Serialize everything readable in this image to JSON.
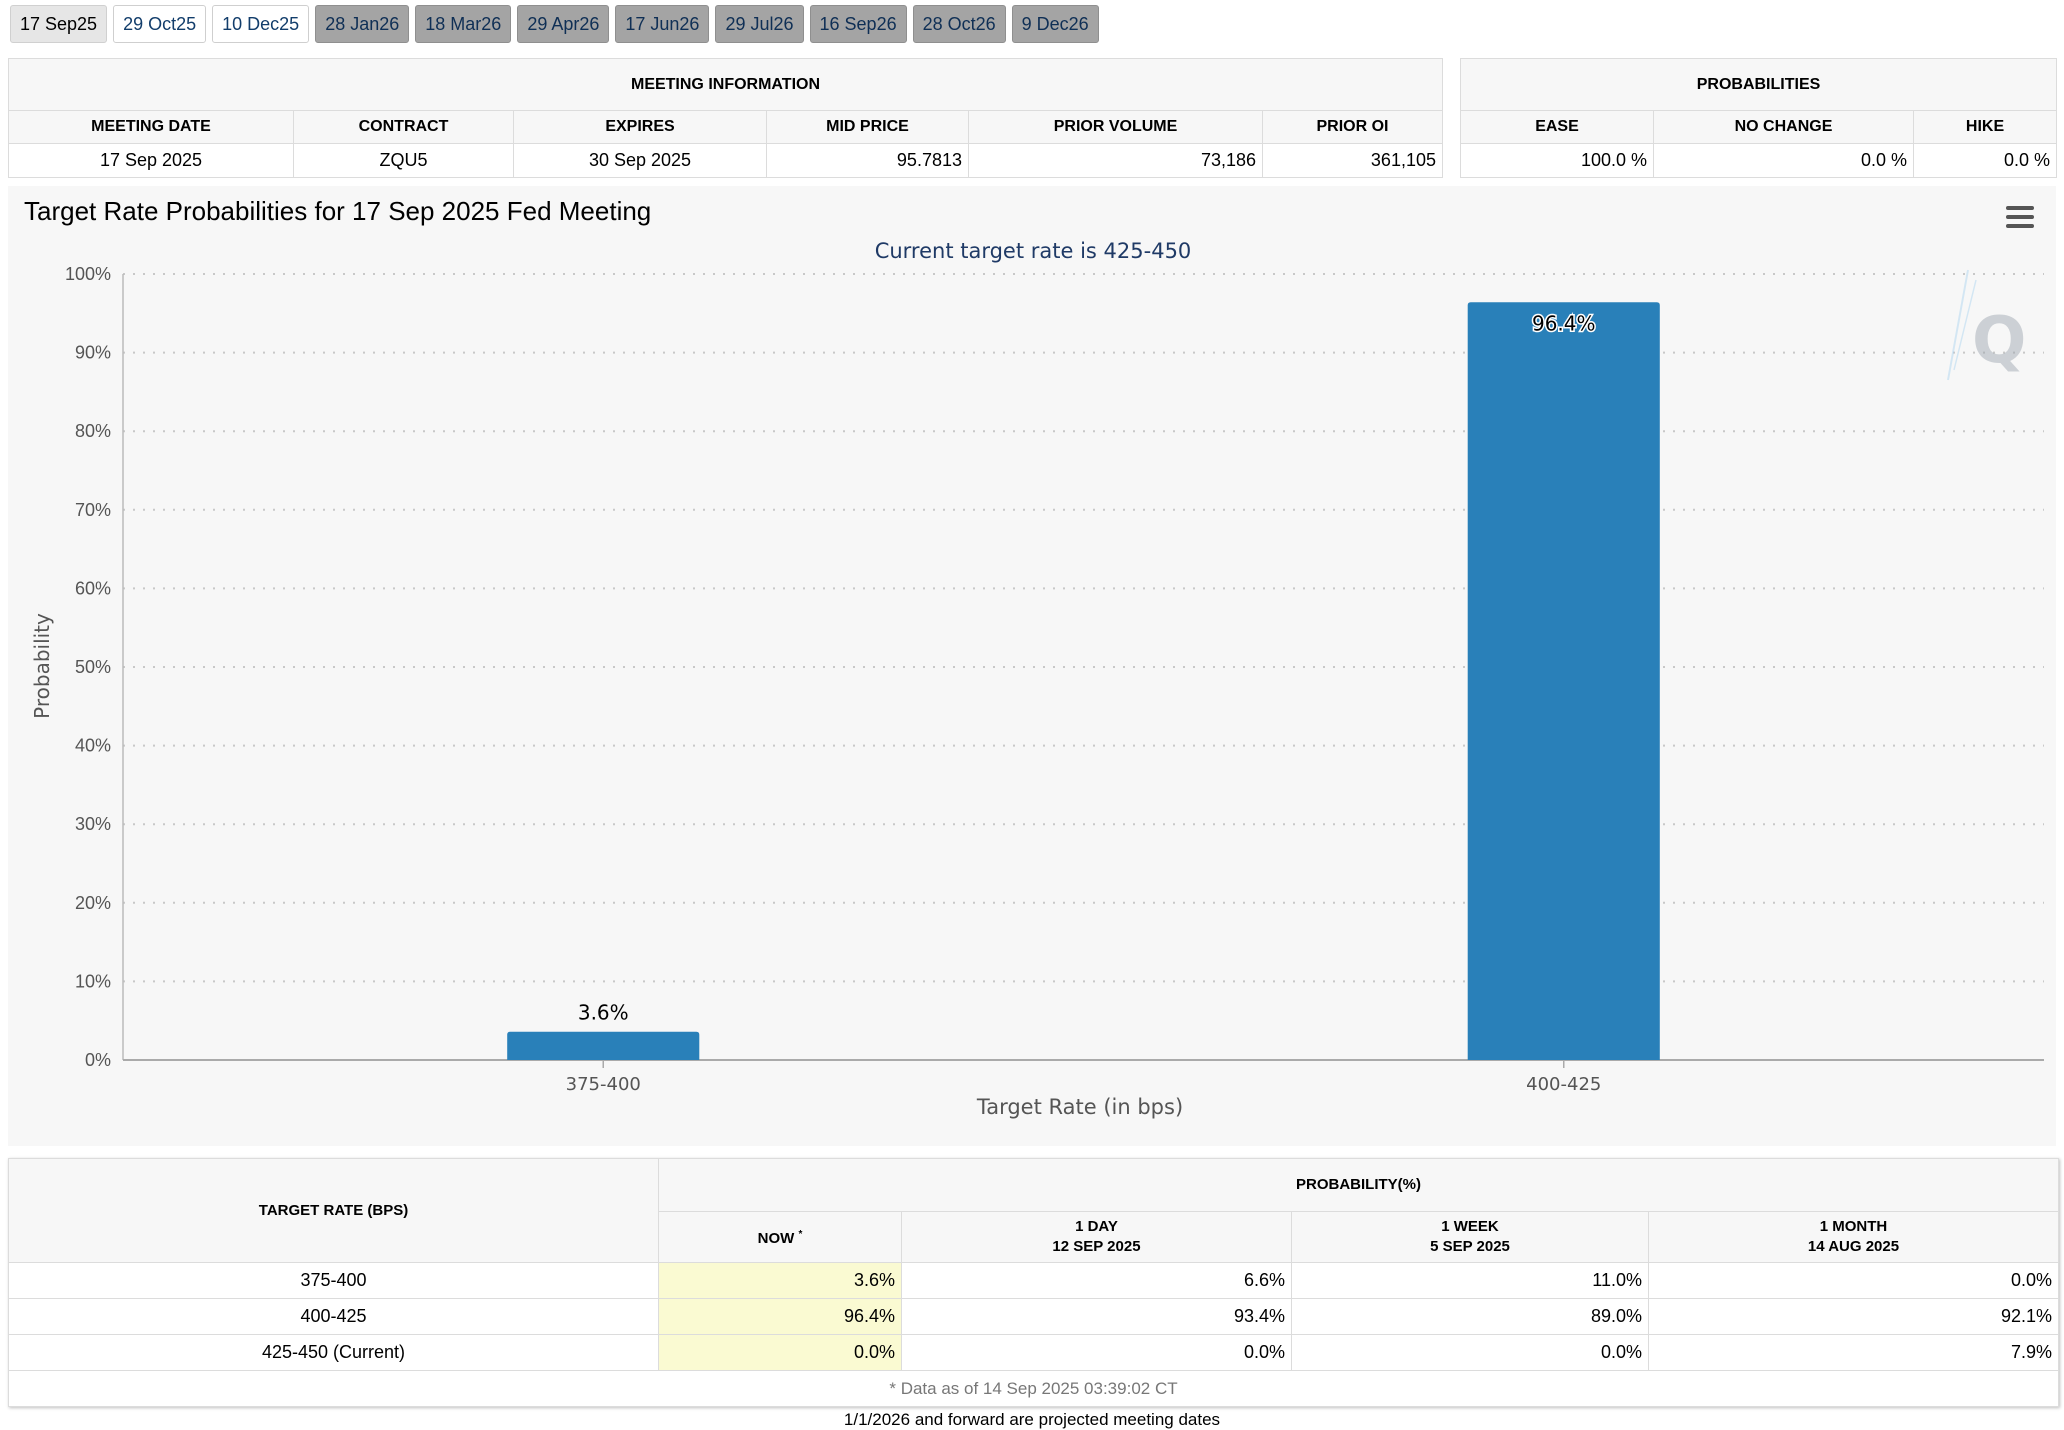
{
  "tabs": [
    {
      "label": "17 Sep25",
      "state": "active"
    },
    {
      "label": "29 Oct25",
      "state": "normal"
    },
    {
      "label": "10 Dec25",
      "state": "normal"
    },
    {
      "label": "28 Jan26",
      "state": "projected"
    },
    {
      "label": "18 Mar26",
      "state": "projected"
    },
    {
      "label": "29 Apr26",
      "state": "projected"
    },
    {
      "label": "17 Jun26",
      "state": "projected"
    },
    {
      "label": "29 Jul26",
      "state": "projected"
    },
    {
      "label": "16 Sep26",
      "state": "projected"
    },
    {
      "label": "28 Oct26",
      "state": "projected"
    },
    {
      "label": "9 Dec26",
      "state": "projected"
    }
  ],
  "meeting_info": {
    "title": "MEETING INFORMATION",
    "headers": [
      "MEETING DATE",
      "CONTRACT",
      "EXPIRES",
      "MID PRICE",
      "PRIOR VOLUME",
      "PRIOR OI"
    ],
    "row": [
      "17 Sep 2025",
      "ZQU5",
      "30 Sep 2025",
      "95.7813",
      "73,186",
      "361,105"
    ]
  },
  "probabilities": {
    "title": "PROBABILITIES",
    "headers": [
      "EASE",
      "NO CHANGE",
      "HIKE"
    ],
    "row": [
      "100.0 %",
      "0.0 %",
      "0.0 %"
    ]
  },
  "chart": {
    "menu_icon": "hamburger-menu-icon",
    "watermark_icon": "quikstrike-q-logo"
  },
  "chart_data": {
    "type": "bar",
    "title": "Target Rate Probabilities for 17 Sep 2025 Fed Meeting",
    "subtitle": "Current target rate is 425-450",
    "xlabel": "Target Rate (in bps)",
    "ylabel": "Probability",
    "categories": [
      "375-400",
      "400-425"
    ],
    "values": [
      3.6,
      96.4
    ],
    "data_labels": [
      "3.6%",
      "96.4%"
    ],
    "ylim": [
      0,
      100
    ],
    "yticks": [
      "0%",
      "10%",
      "20%",
      "30%",
      "40%",
      "50%",
      "60%",
      "70%",
      "80%",
      "90%",
      "100%"
    ],
    "grid": true,
    "bar_color": "#2980b9",
    "subtitle_color": "#1f3a66"
  },
  "rate_table": {
    "col1_header": "TARGET RATE (BPS)",
    "group_header": "PROBABILITY(%)",
    "now_header": "NOW",
    "now_marker": "*",
    "day_header": "1 DAY",
    "day_date": "12 SEP 2025",
    "week_header": "1 WEEK",
    "week_date": "5 SEP 2025",
    "month_header": "1 MONTH",
    "month_date": "14 AUG 2025",
    "rows": [
      {
        "rate": "375-400",
        "now": "3.6%",
        "day": "6.6%",
        "week": "11.0%",
        "month": "0.0%"
      },
      {
        "rate": "400-425",
        "now": "96.4%",
        "day": "93.4%",
        "week": "89.0%",
        "month": "92.1%"
      },
      {
        "rate": "425-450 (Current)",
        "now": "0.0%",
        "day": "0.0%",
        "week": "0.0%",
        "month": "7.9%"
      }
    ],
    "footnote": "* Data as of 14 Sep 2025 03:39:02 CT"
  },
  "bottom_note": "1/1/2026 and forward are projected meeting dates"
}
